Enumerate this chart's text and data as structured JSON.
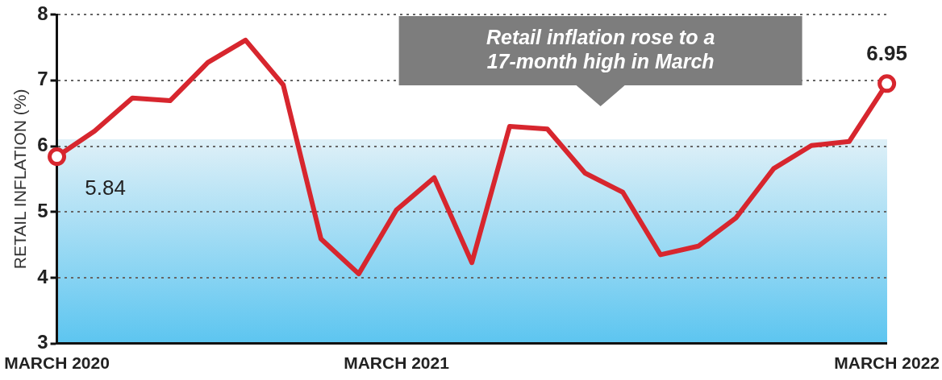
{
  "chart_data": {
    "type": "line",
    "ylabel": "RETAIL INFLATION (%)",
    "categories": [
      "MARCH 2020",
      null,
      null,
      null,
      null,
      null,
      null,
      null,
      null,
      "MARCH 2021",
      null,
      null,
      null,
      null,
      null,
      null,
      null,
      null,
      null,
      null,
      null,
      null,
      "MARCH 2022"
    ],
    "series": [
      {
        "color": "#d7262e",
        "values": [
          5.84,
          6.23,
          6.73,
          6.69,
          7.27,
          7.61,
          6.93,
          4.59,
          4.06,
          5.03,
          5.52,
          4.23,
          6.3,
          6.26,
          5.59,
          5.3,
          4.35,
          4.48,
          4.91,
          5.66,
          6.01,
          6.07,
          6.95
        ],
        "value_labels": [
          "5.84",
          null,
          null,
          null,
          null,
          null,
          null,
          null,
          null,
          null,
          null,
          null,
          null,
          null,
          null,
          null,
          null,
          null,
          null,
          null,
          null,
          null,
          "6.95"
        ]
      }
    ],
    "ylim": [
      3,
      8
    ],
    "yticks": [
      3,
      4,
      5,
      6,
      7,
      8
    ],
    "grid": "y",
    "legend": false,
    "annotations": [
      "Retail inflation rose to a 17-month high in March"
    ]
  }
}
